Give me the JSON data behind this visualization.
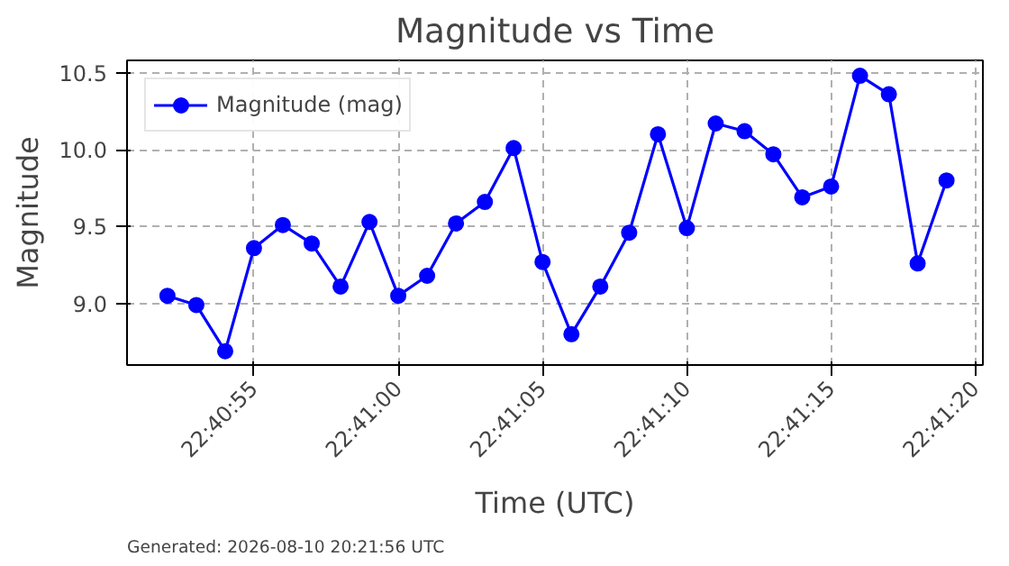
{
  "chart_data": {
    "type": "line",
    "title": "Magnitude vs Time",
    "xlabel": "Time (UTC)",
    "ylabel": "Magnitude",
    "x": [
      22.681111,
      22.681389,
      22.681667,
      22.681944,
      22.682222,
      22.6825,
      22.682778,
      22.683056,
      22.683333,
      22.683611,
      22.683889,
      22.684167,
      22.684444,
      22.684722,
      22.685,
      22.685278,
      22.685556,
      22.685833,
      22.686111,
      22.686389,
      22.686667,
      22.686944,
      22.687222,
      22.6875,
      22.687778,
      22.688056,
      22.688333,
      22.688611
    ],
    "series": [
      {
        "name": "Magnitude (mag)",
        "color": "#0000ff",
        "values": [
          9.05,
          8.99,
          8.69,
          9.36,
          9.51,
          9.39,
          9.11,
          9.53,
          9.05,
          9.18,
          9.52,
          9.66,
          10.01,
          9.27,
          8.8,
          9.11,
          9.46,
          10.1,
          9.49,
          10.17,
          10.12,
          9.97,
          9.69,
          9.76,
          10.48,
          10.36,
          9.26,
          9.8
        ]
      }
    ],
    "xlim": [
      22.680722,
      22.688961
    ],
    "ylim": [
      8.6,
      10.58
    ],
    "xticks": [
      {
        "value": 22.681944,
        "label": "22:40:55"
      },
      {
        "value": 22.683333,
        "label": "22:41:00"
      },
      {
        "value": 22.684722,
        "label": "22:41:05"
      },
      {
        "value": 22.686111,
        "label": "22:41:10"
      },
      {
        "value": 22.6875,
        "label": "22:41:15"
      },
      {
        "value": 22.688889,
        "label": "22:41:20"
      }
    ],
    "yticks": [
      {
        "value": 9.0,
        "label": "9.0"
      },
      {
        "value": 9.5,
        "label": "9.5"
      },
      {
        "value": 10.0,
        "label": "10.0"
      },
      {
        "value": 10.5,
        "label": "10.5"
      }
    ],
    "grid": true,
    "legend": "top left",
    "marker": "circle",
    "line_style": "solid",
    "annotations": [
      "Generated: 2026-08-10 20:21:56 UTC"
    ]
  }
}
